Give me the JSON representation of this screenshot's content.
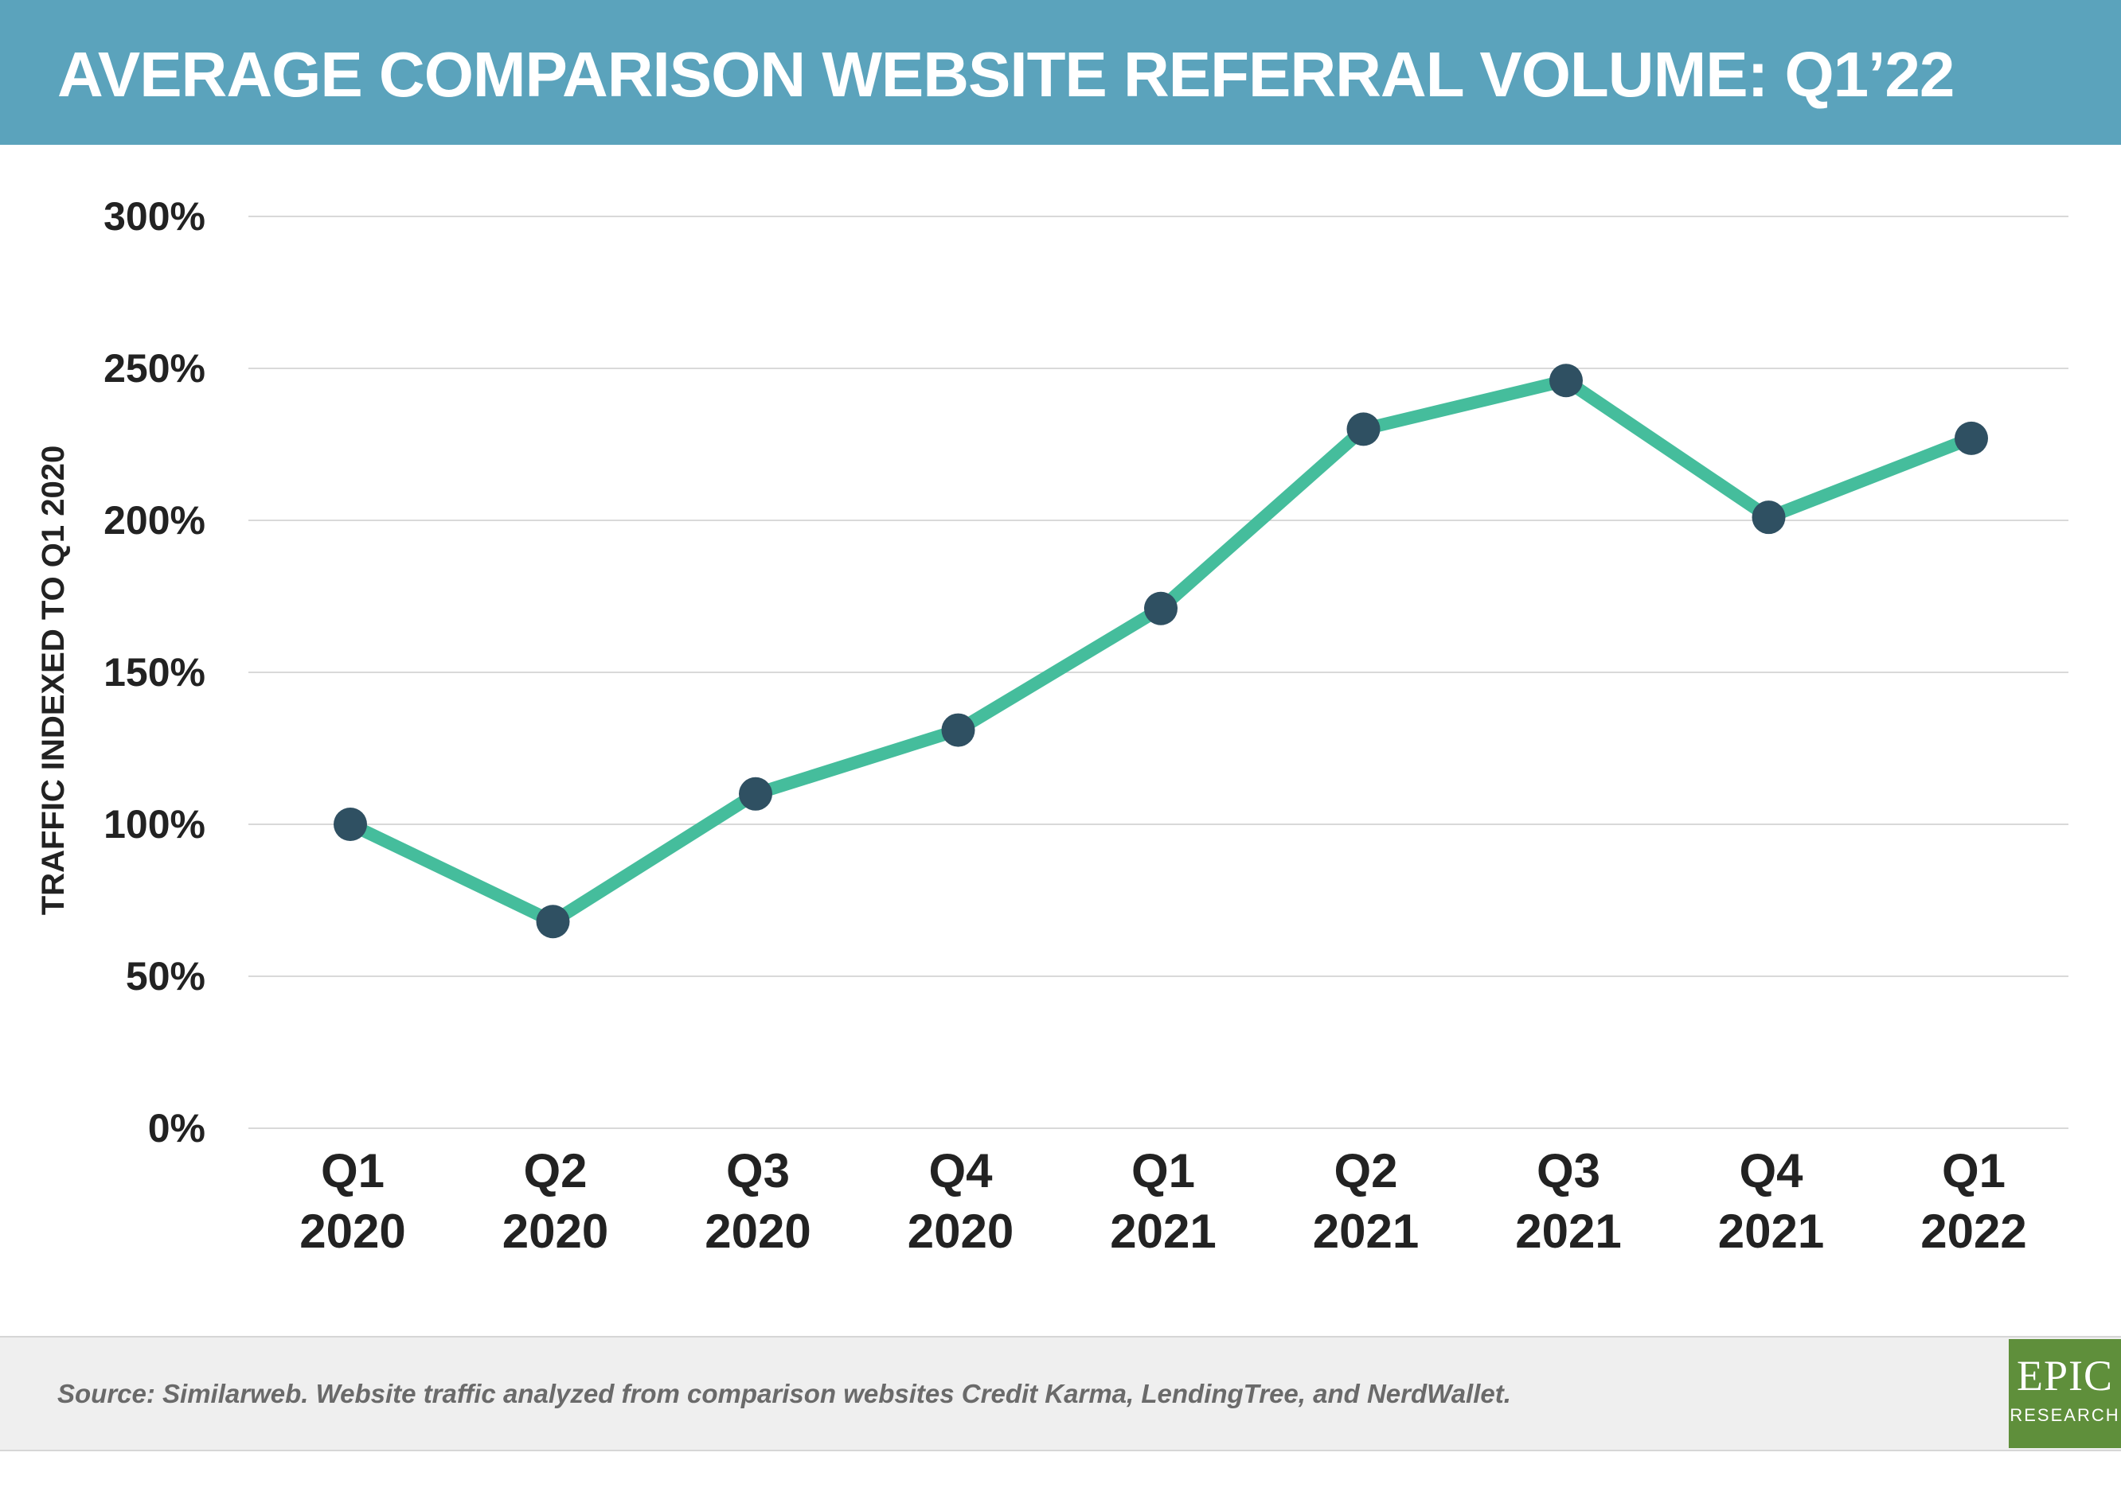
{
  "title": "AVERAGE COMPARISON WEBSITE REFERRAL VOLUME: Q1’22",
  "source": "Source: Similarweb. Website traffic analyzed from comparison websites Credit Karma, LendingTree, and NerdWallet.",
  "logo": {
    "main": "EPIC",
    "sub": "RESEARCH"
  },
  "colors": {
    "header_background": "#5ba3bc",
    "line": "#45bd9c",
    "marker": "#2f5062",
    "gridline": "#d9d9d9",
    "logo_background": "#5f8f3b"
  },
  "chart_data": {
    "type": "line",
    "categories": [
      [
        "Q1",
        "2020"
      ],
      [
        "Q2",
        "2020"
      ],
      [
        "Q3",
        "2020"
      ],
      [
        "Q4",
        "2020"
      ],
      [
        "Q1",
        "2021"
      ],
      [
        "Q2",
        "2021"
      ],
      [
        "Q3",
        "2021"
      ],
      [
        "Q4",
        "2021"
      ],
      [
        "Q1",
        "2022"
      ]
    ],
    "series": [
      {
        "values": [
          100,
          68,
          110,
          131,
          171,
          230,
          246,
          201,
          227
        ]
      }
    ],
    "ylabel": "TRAFFIC INDEXED TO Q1 2020",
    "ylim": [
      0,
      300
    ],
    "yticks": [
      0,
      50,
      100,
      150,
      200,
      250,
      300
    ],
    "ytick_labels": [
      "0%",
      "50%",
      "100%",
      "150%",
      "200%",
      "250%",
      "300%"
    ],
    "grid": true,
    "markers": true
  }
}
